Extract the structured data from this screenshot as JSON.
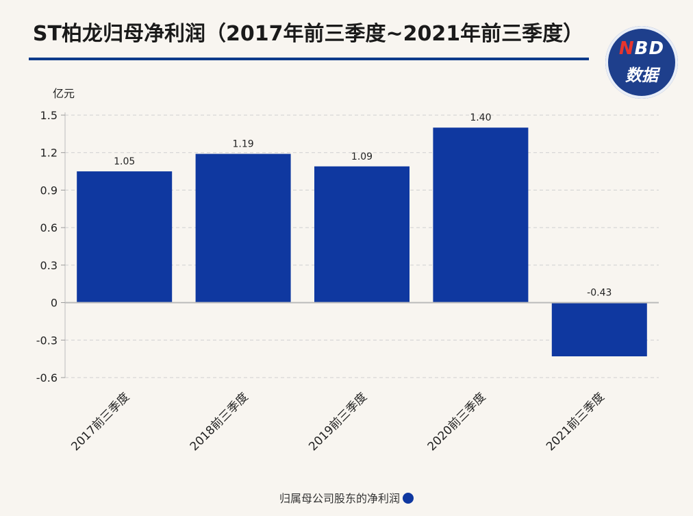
{
  "title": "ST柏龙归母净利润（2017年前三季度~2021年前三季度）",
  "logo": {
    "line1": "NBD",
    "line2": "数据"
  },
  "colors": {
    "bar": "#0f38a0",
    "title_rule": "#0d3a8a",
    "logo_bg": "#1e3f8c"
  },
  "chart_data": {
    "type": "bar",
    "categories": [
      "2017前三季度",
      "2018前三季度",
      "2019前三季度",
      "2020前三季度",
      "2021前三季度"
    ],
    "series": [
      {
        "name": "归属母公司股东的净利润",
        "values": [
          1.05,
          1.19,
          1.09,
          1.4,
          -0.43
        ]
      }
    ],
    "data_labels": [
      "1.05",
      "1.19",
      "1.09",
      "1.40",
      "-0.43"
    ],
    "ylabel": "亿元",
    "ylim": [
      -0.6,
      1.5
    ],
    "yticks": [
      1.5,
      1.2,
      0.9,
      0.6,
      0.3,
      0,
      -0.3,
      -0.6
    ],
    "ytick_labels": [
      "1.5",
      "1.2",
      "0.9",
      "0.6",
      "0.3",
      "0",
      "-0.3",
      "-0.6"
    ],
    "grid": true,
    "legend_position": "bottom"
  }
}
